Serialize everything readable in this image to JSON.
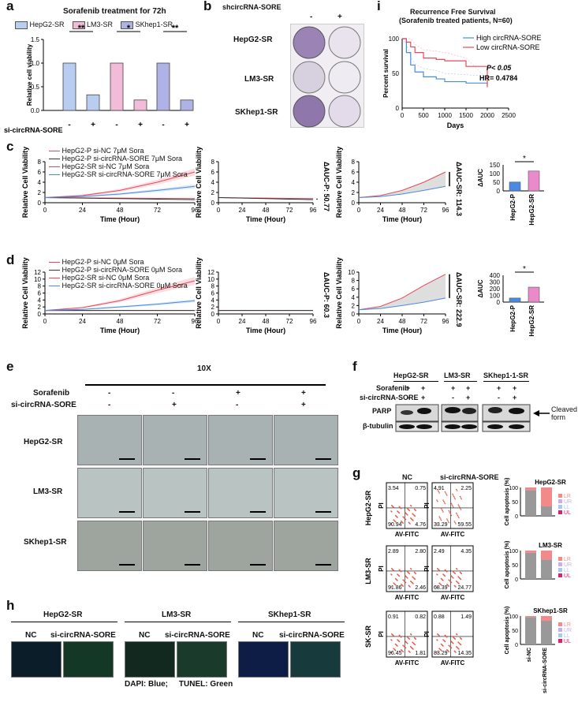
{
  "panel_letters": {
    "a": "a",
    "b": "b",
    "c": "c",
    "d": "d",
    "e": "e",
    "f": "f",
    "g": "g",
    "h": "h",
    "i": "i"
  },
  "colors": {
    "hepg2": "#b9cdf0",
    "lm3": "#f2bcd8",
    "skhep1": "#aeb2e4",
    "red": "#e8495a",
    "blue": "#4a8ae0",
    "dark": "#333333"
  },
  "panel_a": {
    "title": "Sorafenib treatment for 72h",
    "legend": [
      "HepG2-SR",
      "LM3-SR",
      "SKhep1-SR"
    ],
    "ylabel": "Relative cell viability",
    "yticks": [
      "0.0",
      "0.5",
      "1.0",
      "1.5"
    ],
    "row_label": "si-circRNA-SORE",
    "signs": [
      "-",
      "+",
      "-",
      "+",
      "-",
      "+"
    ],
    "sig": [
      "**",
      "*",
      "**"
    ]
  },
  "panel_b": {
    "header": "shcircRNA-SORE",
    "signs": [
      "-",
      "+"
    ],
    "rows": [
      "HepG2-SR",
      "LM3-SR",
      "SKhep1-SR"
    ]
  },
  "panel_c": {
    "legend": [
      "HepG2-P si-NC 7μM Sora",
      "HepG2-P si-circRNA-SORE 7μM Sora",
      "HepG2-SR si-NC 7μM Sora",
      "HepG2-SR si-circRNA-SORE 7μM Sora"
    ],
    "ylabel": "Relative Cell Viability",
    "xlabel": "Time (Hour)",
    "xticks": [
      "0",
      "24",
      "48",
      "72",
      "96"
    ],
    "yticks1": [
      "0",
      "2",
      "4",
      "6",
      "8"
    ],
    "yticks2": [
      "0",
      "2",
      "4",
      "6",
      "8"
    ],
    "yticks3": [
      "0",
      "2",
      "4",
      "6",
      "8"
    ],
    "auc_p": "ΔAUC-P: 50.77",
    "auc_sr": "ΔAUC-SR: 114.3",
    "bar_ylabel": "ΔAUC",
    "bar_yticks": [
      "0",
      "50",
      "100",
      "150"
    ],
    "bar_xticks": [
      "HepG2-P",
      "HepG2-SR"
    ],
    "sig": "*"
  },
  "panel_d": {
    "legend": [
      "HepG2-P si-NC 0μM Sora",
      "HepG2-P si-circRNA-SORE 0μM Sora",
      "HepG2-SR si-NC 0μM Sora",
      "HepG2-SR si-circRNA-SORE 0μM Sora"
    ],
    "ylabel": "Relative Cell Viability",
    "xlabel": "Time (Hour)",
    "xticks": [
      "0",
      "24",
      "48",
      "72",
      "96"
    ],
    "yticks1": [
      "0",
      "2",
      "4",
      "6",
      "8",
      "10",
      "12"
    ],
    "yticks2": [
      "0",
      "2",
      "4",
      "6",
      "8",
      "10",
      "12"
    ],
    "yticks3": [
      "0",
      "2",
      "4",
      "6",
      "8",
      "10"
    ],
    "auc_p": "ΔAUC-P: 60.3",
    "auc_sr": "ΔAUC-SR: 222.9",
    "bar_ylabel": "ΔAUC",
    "bar_yticks": [
      "0",
      "100",
      "200",
      "300",
      "400"
    ],
    "bar_xticks": [
      "HepG2-P",
      "HepG2-SR"
    ],
    "sig": "*"
  },
  "panel_e": {
    "magnification": "10X",
    "sorafenib_label": "Sorafenib",
    "si_label": "si-circRNA-SORE",
    "sorafenib_signs": [
      "-",
      "-",
      "+",
      "+"
    ],
    "si_signs": [
      "-",
      "+",
      "-",
      "+"
    ],
    "rows": [
      "HepG2-SR",
      "LM3-SR",
      "SKhep1-SR"
    ]
  },
  "panel_f": {
    "cells": [
      "HepG2-SR",
      "LM3-SR",
      "SKhep1-1-SR"
    ],
    "sorafenib_label": "Sorafenib",
    "si_label": "si-circRNA-SORE",
    "sorafenib_signs": [
      "+",
      "+",
      "+",
      "+",
      "+",
      "+"
    ],
    "si_signs": [
      "-",
      "+",
      "-",
      "+",
      "-",
      "+"
    ],
    "bands": [
      "PARP",
      "β-tubulin"
    ],
    "annotation": "Cleaved form"
  },
  "panel_g": {
    "col_headers": [
      "NC",
      "si-circRNA-SORE"
    ],
    "rows": [
      {
        "label": "HepG2-SR",
        "nc": [
          "3.54",
          "0.75",
          "90.94",
          "4.76"
        ],
        "si": [
          "4.91",
          "2.25",
          "33.29",
          "59.55"
        ],
        "bar_title": "HepG2-SR"
      },
      {
        "label": "LM3-SR",
        "nc": [
          "2.89",
          "2.80",
          "91.86",
          "2.46"
        ],
        "si": [
          "2.49",
          "4.35",
          "68.39",
          "24.77"
        ],
        "bar_title": "LM3-SR"
      },
      {
        "label": "SK-SR",
        "nc": [
          "0.91",
          "0.82",
          "96.45",
          "1.81"
        ],
        "si": [
          "0.88",
          "1.49",
          "83.29",
          "14.35"
        ],
        "bar_title": "SKhep1-SR"
      }
    ],
    "xlabel": "AV-FITC",
    "ylabel": "PI",
    "bar_ylabel": "Cell apoptosis (%)",
    "bar_yticks": [
      "0",
      "50",
      "100"
    ],
    "legend": [
      "LR",
      "UR",
      "LL",
      "UL"
    ],
    "bar_xticks": [
      "si-NC",
      "si-circRNA-SORE"
    ]
  },
  "panel_h": {
    "groups": [
      "HepG2-SR",
      "LM3-SR",
      "SKhep1-SR"
    ],
    "sub": [
      "NC",
      "si-circRNA-SORE"
    ],
    "caption": "DAPI: Blue;     TUNEL: Green"
  },
  "panel_i": {
    "title": "Recurrence Free Survival",
    "subtitle": "(Sorafenib treated patients, N=60)",
    "legend": [
      "High circRNA-SORE",
      "Low circRNA-SORE"
    ],
    "stat_p": "P< 0.05",
    "stat_hr": "HR= 0.4784",
    "ylabel": "Percent survival",
    "xlabel": "Days",
    "xticks": [
      "0",
      "500",
      "1000",
      "1500",
      "2000",
      "2500"
    ],
    "yticks": [
      "0",
      "50",
      "100"
    ]
  },
  "chart_data": [
    {
      "type": "bar",
      "id": "a",
      "title": "Sorafenib treatment for 72h",
      "ylabel": "Relative cell viability",
      "ylim": [
        0,
        1.5
      ],
      "categories": [
        "HepG2-SR -",
        "HepG2-SR +",
        "LM3-SR -",
        "LM3-SR +",
        "SKhep1-SR -",
        "SKhep1-SR +"
      ],
      "values": [
        1.0,
        0.33,
        1.0,
        0.22,
        1.0,
        0.22
      ]
    },
    {
      "type": "line",
      "id": "c1",
      "xlabel": "Time (Hour)",
      "ylabel": "Relative Cell Viability",
      "ylim": [
        0,
        8
      ],
      "x": [
        0,
        24,
        48,
        72,
        96
      ],
      "series": [
        {
          "name": "HepG2-P si-NC 7μM Sora",
          "values": [
            1.0,
            0.95,
            0.9,
            0.85,
            0.8
          ]
        },
        {
          "name": "HepG2-P si-circRNA-SORE 7μM Sora",
          "values": [
            1.0,
            0.9,
            0.8,
            0.7,
            0.6
          ]
        },
        {
          "name": "HepG2-SR si-NC 7μM Sora",
          "values": [
            1.0,
            1.4,
            2.4,
            4.0,
            6.0
          ]
        },
        {
          "name": "HepG2-SR si-circRNA-SORE 7μM Sora",
          "values": [
            1.0,
            1.2,
            1.7,
            2.4,
            3.2
          ]
        }
      ]
    },
    {
      "type": "bar",
      "id": "c4",
      "ylabel": "ΔAUC",
      "ylim": [
        0,
        150
      ],
      "categories": [
        "HepG2-P",
        "HepG2-SR"
      ],
      "values": [
        50.77,
        114.3
      ]
    },
    {
      "type": "line",
      "id": "d1",
      "xlabel": "Time (Hour)",
      "ylabel": "Relative Cell Viability",
      "ylim": [
        0,
        12
      ],
      "x": [
        0,
        24,
        48,
        72,
        96
      ],
      "series": [
        {
          "name": "HepG2-P si-NC 0μM Sora",
          "values": [
            1.0,
            1.0,
            1.0,
            1.0,
            1.0
          ]
        },
        {
          "name": "HepG2-P si-circRNA-SORE 0μM Sora",
          "values": [
            1.0,
            1.0,
            1.0,
            1.0,
            1.0
          ]
        },
        {
          "name": "HepG2-SR si-NC 0μM Sora",
          "values": [
            1.0,
            1.8,
            3.8,
            6.8,
            9.5
          ]
        },
        {
          "name": "HepG2-SR si-circRNA-SORE 0μM Sora",
          "values": [
            1.0,
            1.3,
            2.0,
            2.8,
            3.8
          ]
        }
      ]
    },
    {
      "type": "bar",
      "id": "d4",
      "ylabel": "ΔAUC",
      "ylim": [
        0,
        400
      ],
      "categories": [
        "HepG2-P",
        "HepG2-SR"
      ],
      "values": [
        60.3,
        222.9
      ]
    },
    {
      "type": "line",
      "id": "i",
      "title": "Recurrence Free Survival",
      "xlabel": "Days",
      "ylabel": "Percent survival",
      "xlim": [
        0,
        2500
      ],
      "ylim": [
        0,
        100
      ],
      "series": [
        {
          "name": "High circRNA-SORE",
          "x": [
            0,
            100,
            200,
            300,
            500,
            800,
            1000,
            1500,
            2000
          ],
          "values": [
            100,
            80,
            62,
            52,
            45,
            42,
            38,
            36,
            34
          ]
        },
        {
          "name": "Low circRNA-SORE",
          "x": [
            0,
            100,
            200,
            300,
            500,
            800,
            1000,
            1500,
            2000
          ],
          "values": [
            100,
            95,
            88,
            80,
            72,
            70,
            68,
            60,
            30
          ]
        }
      ]
    }
  ]
}
